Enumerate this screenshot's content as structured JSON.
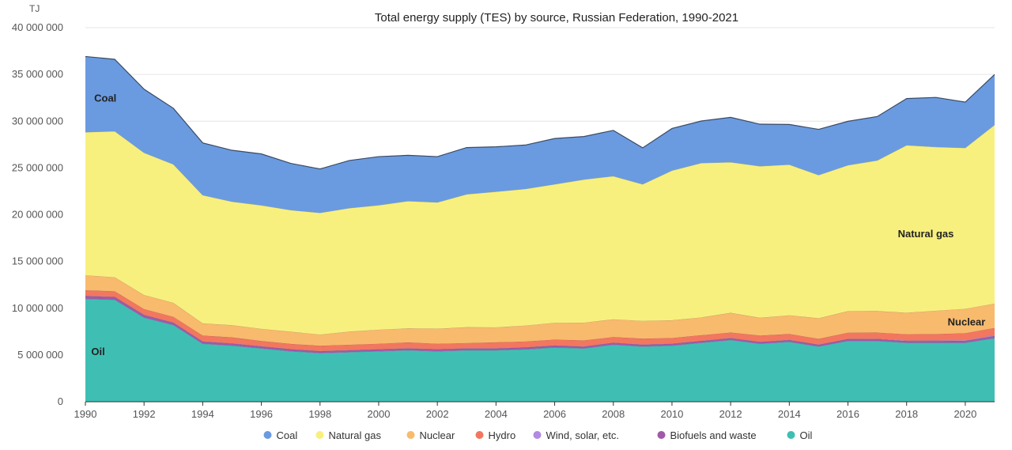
{
  "chart_data": {
    "type": "area",
    "stacked": true,
    "title": "Total energy supply (TES) by source, Russian Federation, 1990-2021",
    "unit_label": "TJ",
    "ylim": [
      0,
      40000000
    ],
    "xlim": [
      1990,
      2021
    ],
    "y_ticks": [
      0,
      5000000,
      10000000,
      15000000,
      20000000,
      25000000,
      30000000,
      35000000,
      40000000
    ],
    "y_tick_labels": [
      "0",
      "5 000 000",
      "10 000 000",
      "15 000 000",
      "20 000 000",
      "25 000 000",
      "30 000 000",
      "35 000 000",
      "40 000 000"
    ],
    "x_ticks": [
      1990,
      1992,
      1994,
      1996,
      1998,
      2000,
      2002,
      2004,
      2006,
      2008,
      2010,
      2012,
      2014,
      2016,
      2018,
      2020
    ],
    "x": [
      1990,
      1991,
      1992,
      1993,
      1994,
      1995,
      1996,
      1997,
      1998,
      1999,
      2000,
      2001,
      2002,
      2003,
      2004,
      2005,
      2006,
      2007,
      2008,
      2009,
      2010,
      2011,
      2012,
      2013,
      2014,
      2015,
      2016,
      2017,
      2018,
      2019,
      2020,
      2021
    ],
    "grid": true,
    "legend_position": "bottom",
    "series": [
      {
        "name": "Oil",
        "color": "#3fbfb4",
        "values": [
          11000000,
          10900000,
          9000000,
          8200000,
          6200000,
          6000000,
          5700000,
          5400000,
          5200000,
          5300000,
          5400000,
          5500000,
          5400000,
          5500000,
          5500000,
          5600000,
          5800000,
          5700000,
          6100000,
          5900000,
          6000000,
          6300000,
          6600000,
          6200000,
          6400000,
          5900000,
          6500000,
          6500000,
          6300000,
          6300000,
          6300000,
          6800000
        ]
      },
      {
        "name": "Biofuels and waste",
        "color": "#a05aa8",
        "values": [
          300000,
          300000,
          280000,
          260000,
          240000,
          230000,
          220000,
          210000,
          200000,
          200000,
          200000,
          200000,
          200000,
          200000,
          200000,
          200000,
          200000,
          200000,
          200000,
          200000,
          200000,
          200000,
          200000,
          200000,
          200000,
          200000,
          200000,
          200000,
          200000,
          200000,
          220000,
          240000
        ]
      },
      {
        "name": "Wind, solar, etc.",
        "color": "#b18ae3",
        "values": [
          20000,
          20000,
          20000,
          20000,
          20000,
          20000,
          20000,
          20000,
          20000,
          20000,
          20000,
          20000,
          20000,
          20000,
          20000,
          20000,
          20000,
          20000,
          20000,
          20000,
          20000,
          20000,
          20000,
          20000,
          20000,
          20000,
          20000,
          30000,
          40000,
          50000,
          60000,
          80000
        ]
      },
      {
        "name": "Hydro",
        "color": "#f2775e",
        "values": [
          600000,
          600000,
          620000,
          600000,
          620000,
          640000,
          560000,
          560000,
          570000,
          580000,
          590000,
          630000,
          590000,
          560000,
          640000,
          630000,
          630000,
          640000,
          600000,
          630000,
          600000,
          600000,
          590000,
          660000,
          630000,
          610000,
          670000,
          670000,
          680000,
          690000,
          760000,
          780000
        ]
      },
      {
        "name": "Nuclear",
        "color": "#f8ba6c",
        "values": [
          1600000,
          1500000,
          1500000,
          1500000,
          1300000,
          1300000,
          1300000,
          1300000,
          1200000,
          1400000,
          1500000,
          1500000,
          1600000,
          1700000,
          1600000,
          1700000,
          1800000,
          1900000,
          1900000,
          1900000,
          1900000,
          1900000,
          2100000,
          1900000,
          2000000,
          2200000,
          2300000,
          2300000,
          2300000,
          2500000,
          2600000,
          2600000
        ]
      },
      {
        "name": "Natural gas",
        "color": "#f8f07e",
        "values": [
          15300000,
          15600000,
          15200000,
          14800000,
          13700000,
          13200000,
          13200000,
          13000000,
          13000000,
          13200000,
          13300000,
          13600000,
          13500000,
          14200000,
          14500000,
          14600000,
          14800000,
          15300000,
          15300000,
          14600000,
          16000000,
          16500000,
          16100000,
          16200000,
          16100000,
          15300000,
          15600000,
          16100000,
          17900000,
          17500000,
          17200000,
          19100000
        ]
      },
      {
        "name": "Coal",
        "color": "#6a9be0",
        "values": [
          8100000,
          7700000,
          6800000,
          6000000,
          5600000,
          5500000,
          5500000,
          5000000,
          4700000,
          5100000,
          5200000,
          4900000,
          4900000,
          5000000,
          4800000,
          4700000,
          4900000,
          4600000,
          4900000,
          3900000,
          4500000,
          4500000,
          4800000,
          4500000,
          4300000,
          4900000,
          4700000,
          4700000,
          5000000,
          5300000,
          4900000,
          5400000
        ]
      }
    ],
    "legend_order": [
      "Coal",
      "Natural gas",
      "Nuclear",
      "Hydro",
      "Wind, solar, etc.",
      "Biofuels and waste",
      "Oil"
    ],
    "annotations": [
      {
        "text": "Coal",
        "x": 1990.3,
        "y": 32500000
      },
      {
        "text": "Natural gas",
        "x": 2017.7,
        "y": 18000000
      },
      {
        "text": "Nuclear",
        "x": 2019.4,
        "y": 8600000
      },
      {
        "text": "Oil",
        "x": 1990.2,
        "y": 5400000
      }
    ]
  }
}
